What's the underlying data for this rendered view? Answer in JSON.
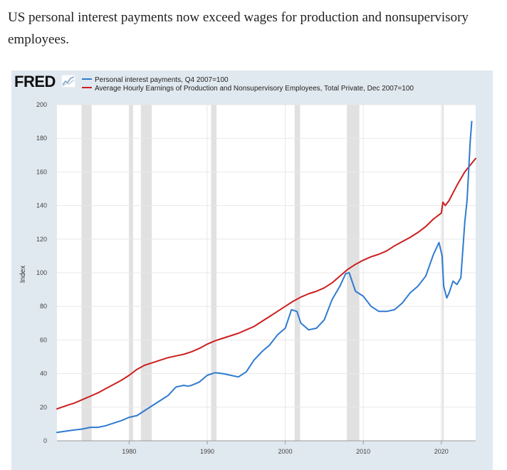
{
  "headline": "US personal interest payments now exceed wages for production and nonsupervisory employees.",
  "logo": {
    "text": "FRED",
    "icon": "fred-chart-icon"
  },
  "colors": {
    "background": "#e1e9f0",
    "plot_area": "#ffffff",
    "recession": "#e1e1e1",
    "grid": "#e8e8e8",
    "series_blue": "#2f7bd0",
    "series_red": "#cc1f1f"
  },
  "chart_data": {
    "type": "line",
    "title": "",
    "xlabel": "",
    "ylabel": "Index",
    "xlim": [
      1970.75,
      2024.4
    ],
    "ylim": [
      0,
      200
    ],
    "grid": true,
    "legend_position": "top-left",
    "x_ticks": [
      1980,
      1990,
      2000,
      2010,
      2020
    ],
    "y_ticks": [
      0,
      20,
      40,
      60,
      80,
      100,
      120,
      140,
      160,
      180,
      200
    ],
    "recessions": [
      [
        1973.9,
        1975.2
      ],
      [
        1980.0,
        1980.5
      ],
      [
        1981.5,
        1982.9
      ],
      [
        1990.5,
        1991.2
      ],
      [
        2001.2,
        2001.9
      ],
      [
        2007.9,
        2009.5
      ],
      [
        2020.1,
        2020.3
      ]
    ],
    "series": [
      {
        "name": "Personal interest payments, Q4 2007=100",
        "color": "#2f7bd0",
        "points": [
          [
            1970.75,
            5
          ],
          [
            1972,
            5.8
          ],
          [
            1973,
            6.5
          ],
          [
            1974,
            7
          ],
          [
            1975,
            8
          ],
          [
            1976,
            8
          ],
          [
            1977,
            9
          ],
          [
            1978,
            10.5
          ],
          [
            1979,
            12
          ],
          [
            1980,
            14
          ],
          [
            1981,
            15
          ],
          [
            1982,
            18
          ],
          [
            1983,
            21
          ],
          [
            1984,
            24
          ],
          [
            1985,
            27
          ],
          [
            1986,
            32
          ],
          [
            1987,
            33
          ],
          [
            1987.5,
            32.5
          ],
          [
            1988,
            33
          ],
          [
            1989,
            35
          ],
          [
            1990,
            39
          ],
          [
            1991,
            40.5
          ],
          [
            1992,
            40
          ],
          [
            1993,
            39
          ],
          [
            1994,
            38
          ],
          [
            1995,
            41
          ],
          [
            1996,
            48
          ],
          [
            1997,
            53
          ],
          [
            1998,
            57
          ],
          [
            1999,
            63
          ],
          [
            2000,
            67
          ],
          [
            2000.8,
            78
          ],
          [
            2001.5,
            77
          ],
          [
            2002,
            70
          ],
          [
            2003,
            66
          ],
          [
            2004,
            67
          ],
          [
            2005,
            72
          ],
          [
            2006,
            84
          ],
          [
            2007,
            92
          ],
          [
            2007.75,
            99.5
          ],
          [
            2008.2,
            100
          ],
          [
            2009,
            89
          ],
          [
            2010,
            86
          ],
          [
            2011,
            80
          ],
          [
            2012,
            77
          ],
          [
            2013,
            77
          ],
          [
            2014,
            78
          ],
          [
            2015,
            82
          ],
          [
            2016,
            88
          ],
          [
            2017,
            92
          ],
          [
            2018,
            98
          ],
          [
            2019,
            111
          ],
          [
            2019.7,
            118
          ],
          [
            2020.1,
            110
          ],
          [
            2020.3,
            92
          ],
          [
            2020.7,
            85
          ],
          [
            2021,
            88
          ],
          [
            2021.5,
            95
          ],
          [
            2022,
            93
          ],
          [
            2022.5,
            97
          ],
          [
            2023,
            130
          ],
          [
            2023.3,
            143
          ],
          [
            2023.5,
            160
          ],
          [
            2023.7,
            178
          ],
          [
            2023.9,
            190
          ]
        ]
      },
      {
        "name": "Average Hourly Earnings of Production and Nonsupervisory Employees, Total Private, Dec 2007=100",
        "color": "#cc1f1f",
        "points": [
          [
            1970.75,
            19
          ],
          [
            1972,
            21
          ],
          [
            1973,
            22.5
          ],
          [
            1974,
            24.5
          ],
          [
            1975,
            26.5
          ],
          [
            1976,
            28.5
          ],
          [
            1977,
            31
          ],
          [
            1978,
            33.5
          ],
          [
            1979,
            36
          ],
          [
            1980,
            39
          ],
          [
            1981,
            42.5
          ],
          [
            1982,
            45
          ],
          [
            1983,
            46.5
          ],
          [
            1984,
            48
          ],
          [
            1985,
            49.5
          ],
          [
            1986,
            50.5
          ],
          [
            1987,
            51.5
          ],
          [
            1988,
            53
          ],
          [
            1989,
            55
          ],
          [
            1990,
            57.5
          ],
          [
            1991,
            59.5
          ],
          [
            1992,
            61
          ],
          [
            1993,
            62.5
          ],
          [
            1994,
            64
          ],
          [
            1995,
            66
          ],
          [
            1996,
            68
          ],
          [
            1997,
            71
          ],
          [
            1998,
            74
          ],
          [
            1999,
            77
          ],
          [
            2000,
            80
          ],
          [
            2001,
            83
          ],
          [
            2002,
            85.5
          ],
          [
            2003,
            87.5
          ],
          [
            2004,
            89
          ],
          [
            2005,
            91
          ],
          [
            2006,
            94
          ],
          [
            2007,
            98
          ],
          [
            2008,
            102
          ],
          [
            2009,
            105
          ],
          [
            2010,
            107.5
          ],
          [
            2011,
            109.5
          ],
          [
            2012,
            111
          ],
          [
            2013,
            113
          ],
          [
            2014,
            116
          ],
          [
            2015,
            118.5
          ],
          [
            2016,
            121
          ],
          [
            2017,
            124
          ],
          [
            2018,
            127.5
          ],
          [
            2019,
            132
          ],
          [
            2020,
            135.5
          ],
          [
            2020.2,
            142
          ],
          [
            2020.5,
            140
          ],
          [
            2021,
            143
          ],
          [
            2022,
            152
          ],
          [
            2023,
            160
          ],
          [
            2024.4,
            168
          ]
        ]
      }
    ]
  }
}
